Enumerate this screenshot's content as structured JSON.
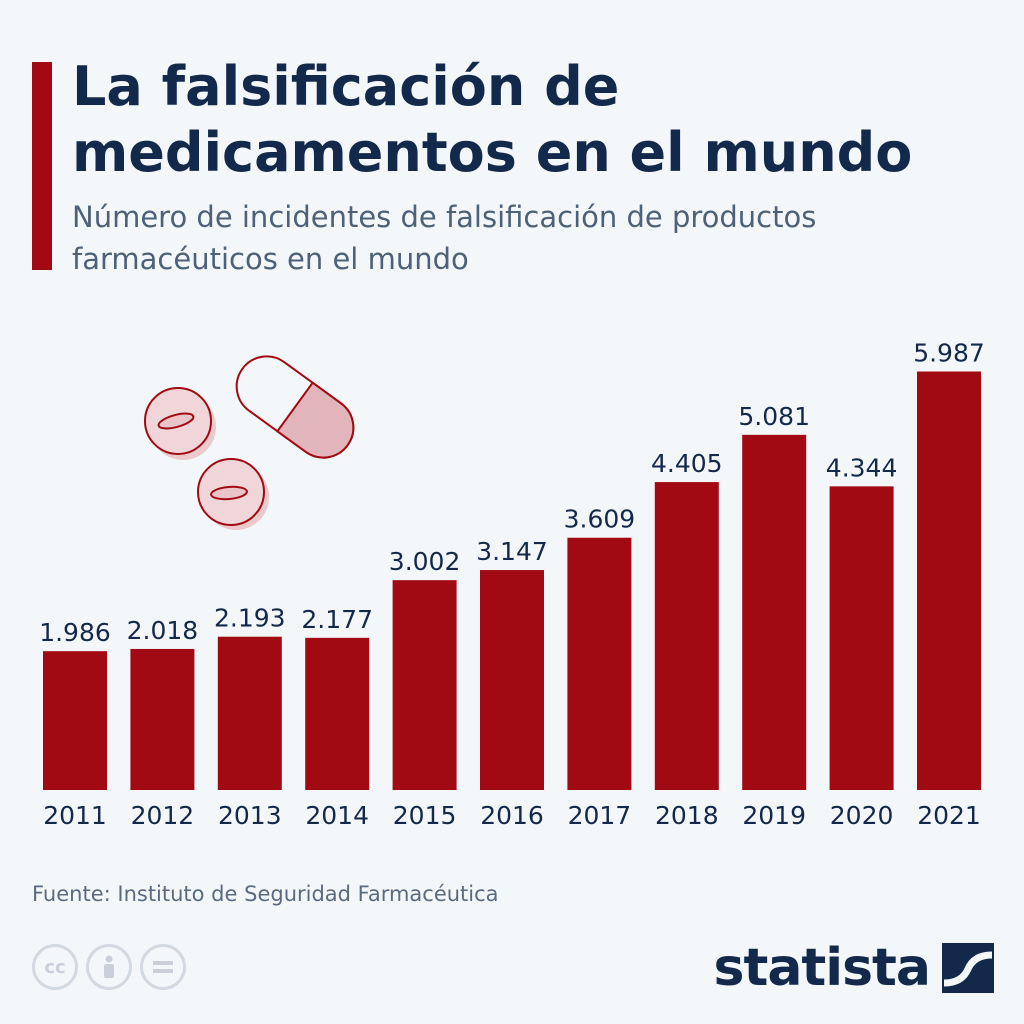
{
  "header": {
    "title": "La falsificación de medicamentos en el mundo",
    "subtitle": "Número de incidentes de falsificación de productos farmacéuticos en el mundo"
  },
  "chart_data": {
    "type": "bar",
    "title": "La falsificación de medicamentos en el mundo",
    "subtitle": "Número de incidentes de falsificación de productos farmacéuticos en el mundo",
    "categories": [
      "2011",
      "2012",
      "2013",
      "2014",
      "2015",
      "2016",
      "2017",
      "2018",
      "2019",
      "2020",
      "2021"
    ],
    "values": [
      1986,
      2018,
      2193,
      2177,
      3002,
      3147,
      3609,
      4405,
      5081,
      4344,
      5987
    ],
    "value_labels": [
      "1.986",
      "2.018",
      "2.193",
      "2.177",
      "3.002",
      "3.147",
      "3.609",
      "4.405",
      "5.081",
      "4.344",
      "5.987"
    ],
    "xlabel": "",
    "ylabel": "",
    "ylim": [
      0,
      6000
    ],
    "grid": false,
    "legend": "none",
    "bar_color": "#a10a12"
  },
  "footer": {
    "source": "Fuente: Instituto de Seguridad Farmacéutica",
    "license_icons": [
      "cc-icon",
      "attribution-icon",
      "no-derivatives-icon"
    ],
    "logo_text": "statista"
  },
  "colors": {
    "background": "#f4f7fa",
    "accent": "#a10a12",
    "title": "#13294b",
    "subtitle": "#4d6179"
  }
}
